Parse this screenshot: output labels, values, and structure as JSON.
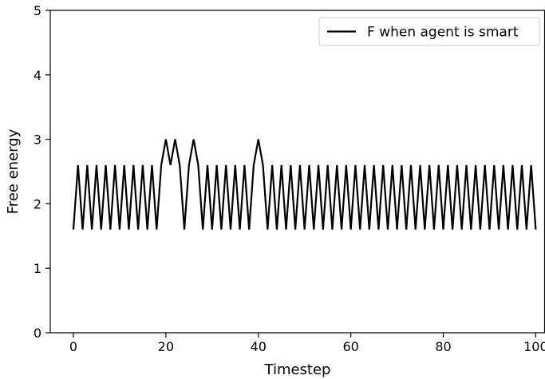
{
  "chart_data": {
    "type": "line",
    "xlabel": "Timestep",
    "ylabel": "Free energy",
    "xlim": [
      -5,
      102
    ],
    "ylim": [
      0,
      5
    ],
    "xticks": [
      0,
      20,
      40,
      60,
      80,
      100
    ],
    "yticks": [
      0,
      1,
      2,
      3,
      4,
      5
    ],
    "grid": false,
    "legend_position": "top-right",
    "series": [
      {
        "name": "F when agent is smart",
        "color": "#000000",
        "x": [
          0,
          1,
          2,
          3,
          4,
          5,
          6,
          7,
          8,
          9,
          10,
          11,
          12,
          13,
          14,
          15,
          16,
          17,
          18,
          19,
          20,
          21,
          22,
          23,
          24,
          25,
          26,
          27,
          28,
          29,
          30,
          31,
          32,
          33,
          34,
          35,
          36,
          37,
          38,
          39,
          40,
          41,
          42,
          43,
          44,
          45,
          46,
          47,
          48,
          49,
          50,
          51,
          52,
          53,
          54,
          55,
          56,
          57,
          58,
          59,
          60,
          61,
          62,
          63,
          64,
          65,
          66,
          67,
          68,
          69,
          70,
          71,
          72,
          73,
          74,
          75,
          76,
          77,
          78,
          79,
          80,
          81,
          82,
          83,
          84,
          85,
          86,
          87,
          88,
          89,
          90,
          91,
          92,
          93,
          94,
          95,
          96,
          97,
          98,
          99,
          100
        ],
        "y": [
          1.6,
          2.6,
          1.6,
          2.6,
          1.6,
          2.6,
          1.6,
          2.6,
          1.6,
          2.6,
          1.6,
          2.6,
          1.6,
          2.6,
          1.6,
          2.6,
          1.6,
          2.6,
          1.6,
          2.6,
          3.0,
          2.6,
          3.0,
          2.6,
          1.6,
          2.6,
          3.0,
          2.6,
          1.6,
          2.6,
          1.6,
          2.6,
          1.6,
          2.6,
          1.6,
          2.6,
          1.6,
          2.6,
          1.6,
          2.6,
          3.0,
          2.6,
          1.6,
          2.6,
          1.6,
          2.6,
          1.6,
          2.6,
          1.6,
          2.6,
          1.6,
          2.6,
          1.6,
          2.6,
          1.6,
          2.6,
          1.6,
          2.6,
          1.6,
          2.6,
          1.6,
          2.6,
          1.6,
          2.6,
          1.6,
          2.6,
          1.6,
          2.6,
          1.6,
          2.6,
          1.6,
          2.6,
          1.6,
          2.6,
          1.6,
          2.6,
          1.6,
          2.6,
          1.6,
          2.6,
          1.6,
          2.6,
          1.6,
          2.6,
          1.6,
          2.6,
          1.6,
          2.6,
          1.6,
          2.6,
          1.6,
          2.6,
          1.6,
          2.6,
          1.6,
          2.6,
          1.6,
          2.6,
          1.6,
          2.6,
          1.6
        ]
      }
    ]
  }
}
